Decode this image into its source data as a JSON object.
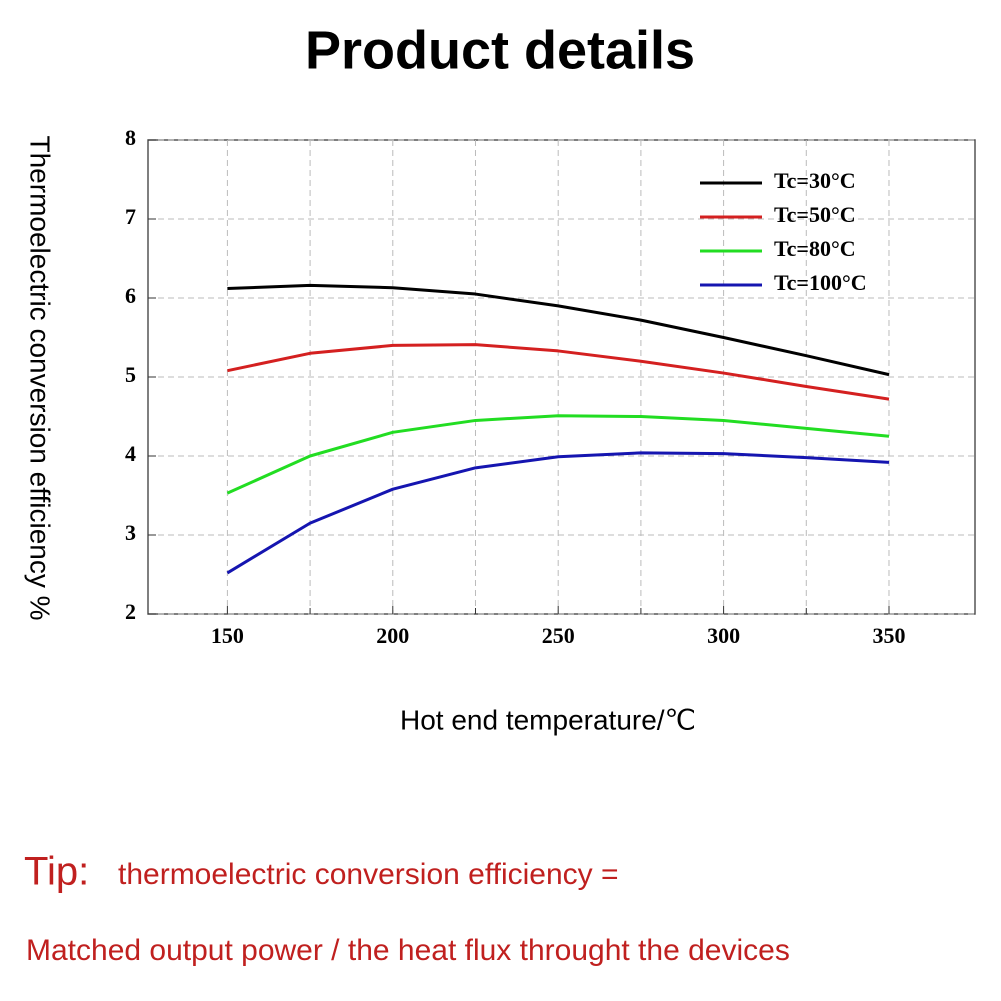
{
  "page_title": "Product details",
  "chart_data": {
    "type": "line",
    "y_label": "Thermoelectric conversion efficiency %",
    "x_label": "Hot end temperature/℃",
    "x": [
      150,
      175,
      200,
      225,
      250,
      275,
      300,
      325,
      350
    ],
    "series": [
      {
        "name": "Tc=30°C",
        "color": "#000000",
        "values": [
          6.12,
          6.16,
          6.13,
          6.05,
          5.9,
          5.72,
          5.5,
          5.27,
          5.03
        ]
      },
      {
        "name": "Tc=50°C",
        "color": "#d42020",
        "values": [
          5.08,
          5.3,
          5.4,
          5.41,
          5.33,
          5.2,
          5.05,
          4.88,
          4.72
        ]
      },
      {
        "name": "Tc=80°C",
        "color": "#22dd22",
        "values": [
          3.53,
          4.0,
          4.3,
          4.45,
          4.51,
          4.5,
          4.45,
          4.35,
          4.25
        ]
      },
      {
        "name": "Tc=100°C",
        "color": "#1515b0",
        "values": [
          2.52,
          3.15,
          3.58,
          3.85,
          3.99,
          4.04,
          4.03,
          3.98,
          3.92
        ]
      }
    ],
    "xlim": [
      126,
      376
    ],
    "xticks": [
      150,
      200,
      250,
      300,
      350
    ],
    "x_minor_ticks": [
      175,
      225,
      275,
      325
    ],
    "ylim": [
      2,
      8
    ],
    "yticks": [
      2,
      3,
      4,
      5,
      6,
      7,
      8
    ],
    "grid": true,
    "legend": "upper right"
  },
  "tip": {
    "label": "Tip:",
    "line1": "thermoelectric conversion efficiency =",
    "line2": "Matched output power / the heat flux throught the devices"
  }
}
